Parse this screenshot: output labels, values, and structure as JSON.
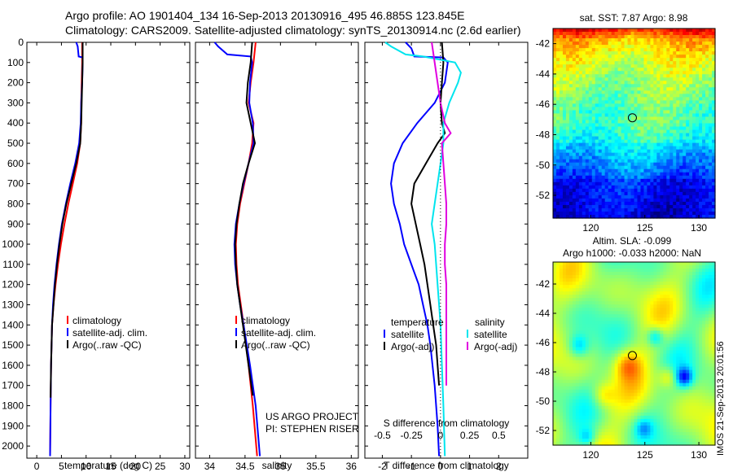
{
  "header": {
    "line1": "Argo profile: AO 1901404_134 16-Sep-2013 20130916_495 46.885S 123.845E",
    "line2": "Climatology: CARS2009. Satellite-adjusted climatology: synTS_20130914.nc (2.6d earlier)"
  },
  "side_label": "IMOS 21-Sep-2013 20:01:56",
  "chart_data": [
    {
      "type": "line",
      "id": "temperature",
      "xlabel": "temperature (deg C)",
      "ylabel": "",
      "xlim": [
        -2,
        31
      ],
      "ylim": [
        2060,
        0
      ],
      "xticks": [
        0,
        5,
        10,
        15,
        20,
        25,
        30
      ],
      "yticks": [
        0,
        100,
        200,
        300,
        400,
        500,
        600,
        700,
        800,
        900,
        1000,
        1100,
        1200,
        1300,
        1400,
        1500,
        1600,
        1700,
        1800,
        1900,
        2000
      ],
      "legend": [
        "climatology",
        "satellite-adj. clim.",
        "Argo(..raw -QC)"
      ],
      "colors": {
        "climatology": "#ff0000",
        "satellite": "#0000ff",
        "argo": "#000000"
      },
      "series": [
        {
          "name": "climatology",
          "color": "#ff0000",
          "depth": [
            0,
            100,
            200,
            300,
            400,
            500,
            600,
            700,
            800,
            900,
            1000,
            1100,
            1200,
            1300,
            1400,
            1600,
            1800,
            2050
          ],
          "values": [
            9.2,
            9.2,
            9.1,
            9.0,
            9.0,
            8.8,
            8.2,
            7.3,
            6.4,
            5.6,
            4.9,
            4.3,
            3.8,
            3.4,
            3.1,
            2.9,
            2.8,
            2.7
          ]
        },
        {
          "name": "satellite-adj. clim.",
          "color": "#0000ff",
          "depth": [
            0,
            20,
            70,
            75,
            100,
            200,
            300,
            400,
            500,
            600,
            700,
            800,
            900,
            1000,
            1100,
            1200,
            1300,
            1400,
            1600,
            1800,
            2050
          ],
          "values": [
            8.0,
            8.3,
            8.5,
            9.3,
            9.3,
            9.2,
            9.0,
            8.9,
            8.6,
            7.8,
            6.8,
            5.9,
            5.1,
            4.5,
            4.0,
            3.6,
            3.3,
            3.1,
            2.9,
            2.8,
            2.7
          ]
        },
        {
          "name": "Argo(..raw -QC)",
          "color": "#000000",
          "depth": [
            0,
            100,
            200,
            300,
            400,
            500,
            600,
            700,
            800,
            900,
            1000,
            1100,
            1200,
            1300,
            1400,
            1600,
            1760
          ],
          "values": [
            9.3,
            9.3,
            9.2,
            9.1,
            9.0,
            8.8,
            8.0,
            7.0,
            6.0,
            5.2,
            4.6,
            4.1,
            3.7,
            3.4,
            3.1,
            2.9,
            2.8
          ]
        }
      ]
    },
    {
      "type": "line",
      "id": "salinity",
      "xlabel": "salinity",
      "ylabel": "",
      "xlim": [
        33.8,
        36.1
      ],
      "ylim": [
        2060,
        0
      ],
      "xticks": [
        34,
        34.5,
        35,
        35.5,
        36
      ],
      "legend": [
        "climatology",
        "satellite-adj. clim.",
        "Argo(..raw -QC)"
      ],
      "annotation": [
        "US ARGO PROJECT",
        "PI: STEPHEN RISER"
      ],
      "series": [
        {
          "name": "climatology",
          "color": "#ff0000",
          "depth": [
            0,
            100,
            200,
            300,
            400,
            500,
            600,
            700,
            800,
            900,
            1000,
            1100,
            1200,
            1300,
            1400,
            1600,
            1800,
            2050
          ],
          "values": [
            34.65,
            34.62,
            34.58,
            34.55,
            34.62,
            34.6,
            34.55,
            34.49,
            34.43,
            34.39,
            34.37,
            34.38,
            34.4,
            34.44,
            34.48,
            34.55,
            34.61,
            34.67
          ]
        },
        {
          "name": "satellite-adj. clim.",
          "color": "#0000ff",
          "depth": [
            0,
            20,
            60,
            70,
            100,
            200,
            300,
            400,
            500,
            600,
            700,
            800,
            900,
            1000,
            1100,
            1200,
            1300,
            1400,
            1600,
            1800,
            2050
          ],
          "values": [
            34.07,
            34.12,
            34.25,
            34.58,
            34.6,
            34.57,
            34.56,
            34.61,
            34.62,
            34.55,
            34.48,
            34.42,
            34.37,
            34.35,
            34.36,
            34.39,
            34.43,
            34.48,
            34.57,
            34.65,
            34.71
          ]
        },
        {
          "name": "Argo(..raw -QC)",
          "color": "#000000",
          "depth": [
            0,
            100,
            200,
            300,
            400,
            500,
            600,
            700,
            800,
            900,
            1000,
            1100,
            1200,
            1300,
            1400,
            1600,
            1750
          ],
          "values": [
            34.6,
            34.58,
            34.54,
            34.52,
            34.58,
            34.64,
            34.55,
            34.47,
            34.42,
            34.38,
            34.36,
            34.37,
            34.39,
            34.43,
            34.47,
            34.55,
            34.61
          ]
        }
      ]
    },
    {
      "type": "line",
      "id": "difference",
      "xlabel": "T difference from climatology",
      "xlabel_top": "S difference from climatology",
      "xlim": [
        -2.6,
        3.0
      ],
      "ylim": [
        2060,
        0
      ],
      "xticks": [
        -2,
        -1,
        0,
        1,
        2
      ],
      "sticks": [
        {
          "label": "-0.5",
          "t": -2.0
        },
        {
          "label": "-0.25",
          "t": -1.0
        },
        {
          "label": "0",
          "t": 0
        },
        {
          "label": "0.25",
          "t": 1.0
        },
        {
          "label": "0.5",
          "t": 2.0
        }
      ],
      "legend": {
        "temperature": "temperature",
        "salinity": "salinity",
        "satellite": "satellite",
        "argo": "Argo(-adj)"
      },
      "series": [
        {
          "name": "temperature satellite",
          "color": "#0000ff",
          "depth": [
            0,
            30,
            70,
            75,
            100,
            150,
            200,
            300,
            400,
            500,
            600,
            700,
            800,
            900,
            1000,
            1100,
            1200,
            1300,
            1400,
            1500,
            1700,
            1900,
            2050
          ],
          "values": [
            -1.2,
            -1.0,
            -0.9,
            0.1,
            0.25,
            0.2,
            0.15,
            -0.2,
            -0.8,
            -1.3,
            -1.6,
            -1.7,
            -1.6,
            -1.4,
            -1.25,
            -1.0,
            -0.75,
            -0.6,
            -0.45,
            -0.35,
            -0.2,
            -0.1,
            -0.05
          ]
        },
        {
          "name": "temperature Argo(-adj)",
          "color": "#000000",
          "depth": [
            0,
            100,
            200,
            300,
            400,
            450,
            500,
            600,
            700,
            800,
            900,
            1000,
            1100,
            1200,
            1300,
            1400,
            1500,
            1600,
            1700
          ],
          "values": [
            0.05,
            0.1,
            0.05,
            0.0,
            0.05,
            0.15,
            -0.1,
            -0.5,
            -0.9,
            -1.0,
            -0.85,
            -0.7,
            -0.55,
            -0.45,
            -0.35,
            -0.25,
            -0.15,
            -0.1,
            -0.05
          ]
        },
        {
          "name": "salinity satellite",
          "color": "#00e5ee",
          "depth": [
            0,
            20,
            60,
            70,
            100,
            150,
            200,
            300,
            400,
            500,
            600,
            700,
            800,
            900,
            1000,
            1200,
            1400,
            1600,
            1800,
            2050
          ],
          "values": [
            -1.9,
            -1.7,
            -1.2,
            -0.6,
            0.5,
            0.7,
            0.6,
            0.3,
            0.1,
            0.1,
            0.0,
            -0.1,
            -0.2,
            -0.3,
            -0.2,
            -0.1,
            0.0,
            0.05,
            0.1,
            0.15
          ]
        },
        {
          "name": "salinity Argo(-adj)",
          "color": "#e000e0",
          "depth": [
            0,
            100,
            200,
            300,
            400,
            450,
            500,
            600,
            700,
            800,
            900,
            1000,
            1100,
            1200,
            1300,
            1400,
            1500,
            1600,
            1700
          ],
          "values": [
            -0.3,
            -0.2,
            -0.1,
            0.0,
            0.15,
            0.35,
            0.05,
            0.1,
            0.15,
            0.2,
            0.2,
            0.15,
            0.15,
            0.2,
            0.2,
            0.2,
            0.2,
            0.2,
            0.2
          ]
        }
      ]
    },
    {
      "type": "heatmap",
      "id": "sst_map",
      "title": "sat. SST: 7.87 Argo: 8.98",
      "xlim": [
        116.5,
        131.5
      ],
      "ylim": [
        -53.5,
        -41
      ],
      "xticks": [
        120,
        125,
        130
      ],
      "yticks": [
        -42,
        -44,
        -46,
        -48,
        -50,
        -52
      ],
      "marker": {
        "lon": 123.845,
        "lat": -46.885
      }
    },
    {
      "type": "heatmap",
      "id": "sla_map",
      "title": "Altim. SLA: -0.099",
      "subtitle": "Argo h1000: -0.033 h2000: NaN",
      "xlim": [
        116.5,
        131.5
      ],
      "ylim": [
        -53,
        -40.5
      ],
      "xticks": [
        120,
        125,
        130
      ],
      "yticks": [
        -42,
        -44,
        -46,
        -48,
        -50,
        -52
      ],
      "marker": {
        "lon": 123.845,
        "lat": -46.885
      }
    }
  ]
}
